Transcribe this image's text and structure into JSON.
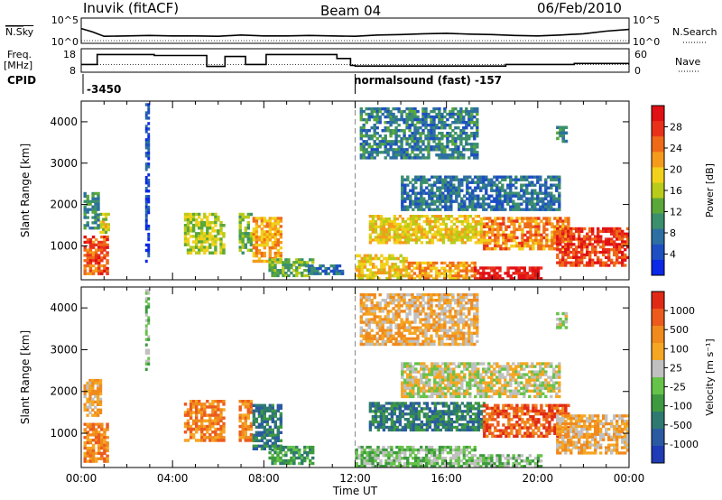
{
  "header": {
    "station": "Inuvik (fitACF)",
    "beam": "Beam 04",
    "date": "06/Feb/2010"
  },
  "side_labels": {
    "nsky": "N.Sky",
    "freq_line1": "Freq.",
    "freq_line2": "[MHz]",
    "cpid": "CPID",
    "nsearch": "N.Search",
    "nave": "Nave"
  },
  "cpid_annotations": {
    "left": "-3450",
    "middle": "normalsound (fast) -157"
  },
  "chart_data": [
    {
      "type": "line",
      "name": "nsky-nsearch-panel",
      "left_ticks": [
        "10^5",
        "10^0"
      ],
      "right_ticks": [
        "10^5",
        "10^0"
      ],
      "x": [
        0,
        0.5,
        1,
        2,
        3,
        4,
        5,
        6,
        7,
        8,
        9,
        10,
        11,
        12,
        13,
        14,
        15,
        16,
        17,
        18,
        19,
        20,
        21,
        22,
        23,
        24
      ],
      "series": [
        {
          "values": [
            3,
            2.2,
            1.2,
            1.3,
            1.4,
            1.3,
            1.3,
            1.2,
            1.5,
            1.3,
            1.3,
            1.4,
            1.3,
            1.2,
            1.5,
            1.6,
            1.8,
            1.9,
            1.7,
            1.6,
            1.4,
            1.3,
            1.5,
            1.8,
            2.4,
            2.8
          ]
        }
      ]
    },
    {
      "type": "line",
      "name": "freq-nave-panel",
      "left_ticks": [
        "18",
        "8"
      ],
      "right_ticks": [
        "60",
        "0"
      ],
      "freq_steps": [
        [
          0,
          0.7,
          11
        ],
        [
          0.7,
          3.2,
          16
        ],
        [
          3.2,
          5.5,
          15.5
        ],
        [
          5.5,
          6.3,
          10
        ],
        [
          6.3,
          7.2,
          15
        ],
        [
          7.2,
          7.7,
          11
        ],
        [
          7.7,
          8.1,
          11
        ],
        [
          8.1,
          11.2,
          16
        ],
        [
          11.2,
          11.8,
          14
        ],
        [
          11.8,
          12,
          10.5
        ],
        [
          12,
          18.6,
          10.2
        ],
        [
          18.6,
          21.6,
          11
        ],
        [
          21.6,
          24,
          11.5
        ]
      ],
      "nave_level": 11
    },
    {
      "type": "heatmap",
      "name": "power-panel",
      "title": "",
      "xlabel": "",
      "ylabel": "Slant Range [km]",
      "x_ticks": [],
      "y_ticks": [
        "1000",
        "2000",
        "3000",
        "4000"
      ],
      "xlim": [
        0,
        24
      ],
      "ylim": [
        180,
        4500
      ],
      "colorbar": {
        "label": "Power [dB]",
        "ticks": [
          "4",
          "8",
          "12",
          "16",
          "20",
          "24",
          "28"
        ],
        "colors": [
          "#0b28e6",
          "#1d4fc2",
          "#2d6fa2",
          "#3b8f6d",
          "#5aa83a",
          "#b9cb1a",
          "#f2d11b",
          "#f59b1c",
          "#ef6a18",
          "#e9311a",
          "#e11014"
        ]
      },
      "regions": [
        {
          "t0": 0.1,
          "t1": 1.2,
          "r0": 300,
          "r1": 1250,
          "v": 8.5
        },
        {
          "t0": 0.8,
          "t1": 1.25,
          "r0": 1300,
          "r1": 1800,
          "v": 5.5
        },
        {
          "t0": 0.1,
          "t1": 0.8,
          "r0": 1400,
          "r1": 2300,
          "v": 3
        },
        {
          "t0": 2.8,
          "t1": 3.0,
          "r0": 600,
          "r1": 4450,
          "v": 1
        },
        {
          "t0": 4.5,
          "t1": 6.3,
          "r0": 800,
          "r1": 1800,
          "v": 5
        },
        {
          "t0": 6.9,
          "t1": 7.5,
          "r0": 800,
          "r1": 1800,
          "v": 4
        },
        {
          "t0": 7.5,
          "t1": 8.8,
          "r0": 600,
          "r1": 1700,
          "v": 7
        },
        {
          "t0": 8.2,
          "t1": 10.2,
          "r0": 250,
          "r1": 700,
          "v": 4
        },
        {
          "t0": 9.8,
          "t1": 11.5,
          "r0": 300,
          "r1": 550,
          "v": 2
        },
        {
          "t0": 12.6,
          "t1": 17.7,
          "r0": 1050,
          "r1": 1750,
          "v": 6
        },
        {
          "t0": 12.0,
          "t1": 14.3,
          "r0": 180,
          "r1": 800,
          "v": 6
        },
        {
          "t0": 14.3,
          "t1": 17.3,
          "r0": 180,
          "r1": 620,
          "v": 7
        },
        {
          "t0": 17.2,
          "t1": 20.2,
          "r0": 180,
          "r1": 500,
          "v": 10
        },
        {
          "t0": 17.6,
          "t1": 21.4,
          "r0": 900,
          "r1": 1700,
          "v": 7.5
        },
        {
          "t0": 20.8,
          "t1": 24,
          "r0": 500,
          "r1": 1450,
          "v": 9
        },
        {
          "t0": 12.2,
          "t1": 17.4,
          "r0": 3100,
          "r1": 4350,
          "v": 2.5
        },
        {
          "t0": 14.0,
          "t1": 21.0,
          "r0": 1850,
          "r1": 2700,
          "v": 2
        },
        {
          "t0": 20.8,
          "t1": 21.3,
          "r0": 3500,
          "r1": 3900,
          "v": 3
        }
      ]
    },
    {
      "type": "heatmap",
      "name": "velocity-panel",
      "title": "",
      "xlabel": "Time UT",
      "ylabel": "Slant Range [km]",
      "x_ticks": [
        "00:00",
        "04:00",
        "08:00",
        "12:00",
        "16:00",
        "20:00",
        "00:00"
      ],
      "y_ticks": [
        "1000",
        "2000",
        "3000",
        "4000"
      ],
      "xlim": [
        0,
        24
      ],
      "ylim": [
        180,
        4500
      ],
      "colorbar": {
        "label": "Velocity [m s⁻¹]",
        "ticks": [
          "1000",
          "500",
          "100",
          "25",
          "-25",
          "-100",
          "-500",
          "-1000"
        ],
        "colors": [
          "#1f3bb5",
          "#2b5aa2",
          "#2f7a70",
          "#3e9a40",
          "#66c34a",
          "#c0c0c0",
          "#f5a623",
          "#f08a1c",
          "#ec5b1d",
          "#e12a16"
        ]
      },
      "regions": [
        {
          "t0": 0.1,
          "t1": 1.2,
          "r0": 300,
          "r1": 1250,
          "v": 7
        },
        {
          "t0": 0.1,
          "t1": 0.9,
          "r0": 1400,
          "r1": 2300,
          "v": 6
        },
        {
          "t0": 2.8,
          "t1": 3.0,
          "r0": 2500,
          "r1": 4450,
          "v": 4
        },
        {
          "t0": 4.5,
          "t1": 6.3,
          "r0": 800,
          "r1": 1800,
          "v": 7
        },
        {
          "t0": 6.9,
          "t1": 7.5,
          "r0": 800,
          "r1": 1800,
          "v": 7
        },
        {
          "t0": 7.5,
          "t1": 8.8,
          "r0": 600,
          "r1": 1700,
          "v": 2
        },
        {
          "t0": 8.2,
          "t1": 10.2,
          "r0": 250,
          "r1": 700,
          "v": 3
        },
        {
          "t0": 12.6,
          "t1": 17.7,
          "r0": 1050,
          "r1": 1750,
          "v": 2
        },
        {
          "t0": 12.0,
          "t1": 17.3,
          "r0": 180,
          "r1": 700,
          "v": 4
        },
        {
          "t0": 17.2,
          "t1": 20.2,
          "r0": 180,
          "r1": 500,
          "v": 4
        },
        {
          "t0": 17.6,
          "t1": 21.4,
          "r0": 900,
          "r1": 1700,
          "v": 8
        },
        {
          "t0": 20.8,
          "t1": 24,
          "r0": 500,
          "r1": 1450,
          "v": 6
        },
        {
          "t0": 12.2,
          "t1": 17.4,
          "r0": 3100,
          "r1": 4350,
          "v": 6
        },
        {
          "t0": 14.0,
          "t1": 21.0,
          "r0": 1850,
          "r1": 2700,
          "v": 5
        },
        {
          "t0": 20.8,
          "t1": 21.3,
          "r0": 3500,
          "r1": 3900,
          "v": 5
        }
      ]
    }
  ]
}
